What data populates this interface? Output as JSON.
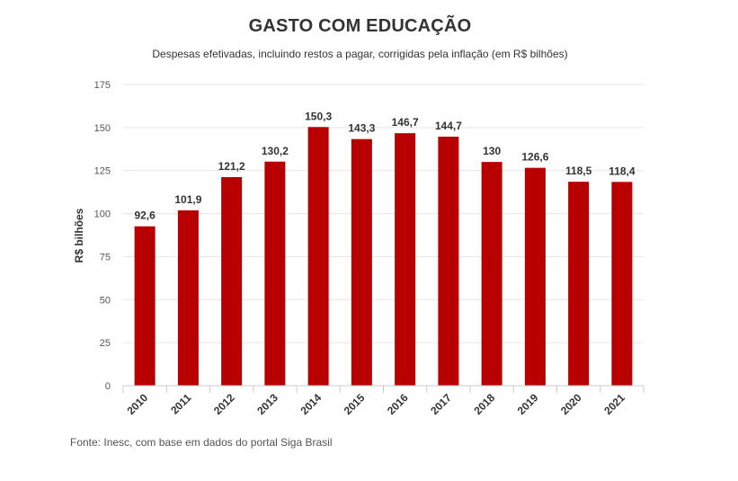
{
  "chart_data": {
    "type": "bar",
    "title": "GASTO COM EDUCAÇÃO",
    "subtitle": "Despesas efetivadas, incluindo restos a pagar, corrigidas pela inflação (em R$ bilhões)",
    "xlabel": "",
    "ylabel": "R$ bilhões",
    "categories": [
      "2010",
      "2011",
      "2012",
      "2013",
      "2014",
      "2015",
      "2016",
      "2017",
      "2018",
      "2019",
      "2020",
      "2021"
    ],
    "values": [
      92.6,
      101.9,
      121.2,
      130.2,
      150.3,
      143.3,
      146.7,
      144.7,
      130,
      126.6,
      118.5,
      118.4
    ],
    "data_labels": [
      "92,6",
      "101,9",
      "121,2",
      "130,2",
      "150,3",
      "143,3",
      "146,7",
      "144,7",
      "130",
      "126,6",
      "118,5",
      "118,4"
    ],
    "yticks": [
      0,
      25,
      50,
      75,
      100,
      125,
      150,
      175
    ],
    "ylim": [
      0,
      175
    ],
    "grid": true,
    "bar_color": "#b80000",
    "source": "Fonte: Inesc, com base em dados do portal Siga Brasil"
  }
}
